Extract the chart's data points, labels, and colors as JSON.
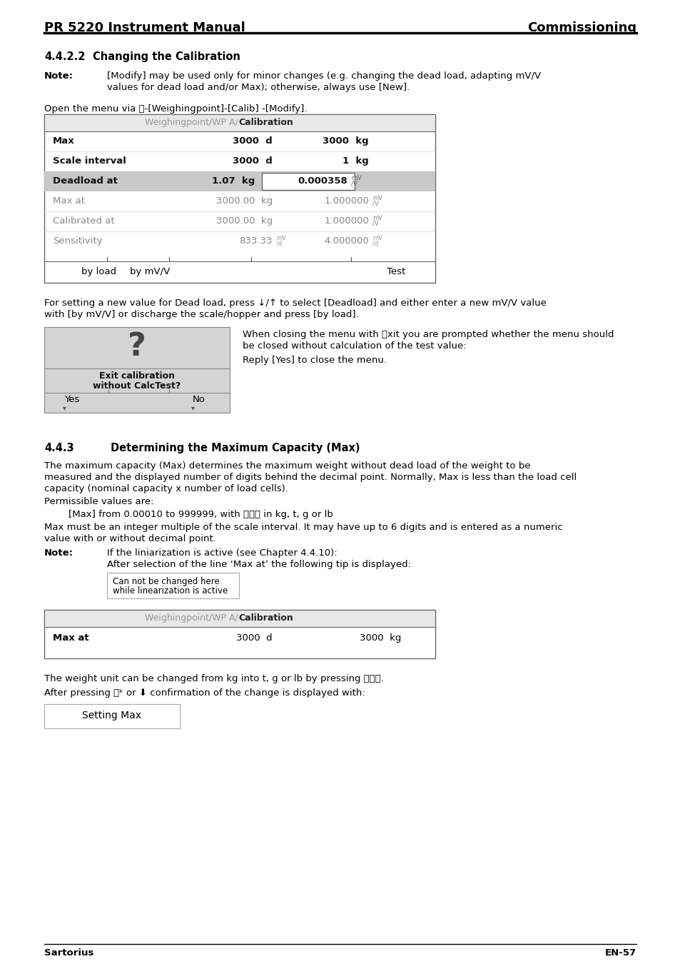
{
  "page_bg": "#ffffff",
  "header_left": "PR 5220 Instrument Manual",
  "header_right": "Commissioning",
  "footer_left": "Sartorius",
  "footer_right": "EN-57",
  "section_442": "4.4.2.2",
  "section_442_title": "Changing the Calibration",
  "note_label": "Note:",
  "note_line1": "[Modify] may be used only for minor changes (e.g. changing the dead load, adapting mV/V",
  "note_line2": "values for dead load and/or Max); otherwise, always use [New].",
  "open_menu": "Open the menu via ⓨ-[Weighingpoint]-[Calib] -[Modify].",
  "t1_header_gray": "Weighingpoint/WP A/",
  "t1_header_bold": "Calibration",
  "t1_rows": [
    {
      "label": "Max",
      "bold": true,
      "gray": false,
      "highlight": false,
      "c2": "3000  d",
      "c3": "3000  kg",
      "icon2": "",
      "icon3": ""
    },
    {
      "label": "Scale interval",
      "bold": true,
      "gray": false,
      "highlight": false,
      "c2": "3000  d",
      "c3": "1  kg",
      "icon2": "",
      "icon3": ""
    },
    {
      "label": "Deadload at",
      "bold": true,
      "gray": false,
      "highlight": true,
      "c2": "1.07  kg",
      "c3": "0.000358",
      "icon2": "",
      "icon3": "mV/V"
    },
    {
      "label": "Max at",
      "bold": false,
      "gray": true,
      "highlight": false,
      "c2": "3000.00  kg",
      "c3": "1.000000",
      "icon2": "",
      "icon3": "mV/V"
    },
    {
      "label": "Calibrated at",
      "bold": false,
      "gray": true,
      "highlight": false,
      "c2": "3000.00  kg",
      "c3": "1.000000",
      "icon2": "",
      "icon3": "mV/V"
    },
    {
      "label": "Sensitivity",
      "bold": false,
      "gray": true,
      "highlight": false,
      "c2": "833.33",
      "c3": "4.000000",
      "icon2": "mV/d",
      "icon3": "mV/d"
    }
  ],
  "t1_footer": [
    "by load",
    "by mV/V",
    "Test"
  ],
  "dead_text1": "For setting a new value for Dead load, press ↓/↑ to select [Deadload] and either enter a new mV/V value",
  "dead_text2": "with [by mV/V] or discharge the scale/hopper and press [by load].",
  "dlg_question": "?",
  "dlg_line1": "Exit calibration",
  "dlg_line2": "without CalcTest?",
  "dlg_yes": "Yes",
  "dlg_no": "No",
  "when1": "When closing the menu with ⓔxit you are prompted whether the menu should",
  "when2": "be closed without calculation of the test value:",
  "reply": "Reply [Yes] to close the menu.",
  "section_443": "4.4.3",
  "section_443_title": "Determining the Maximum Capacity (Max)",
  "p1": "The maximum capacity (Max) determines the maximum weight without dead load of the weight to be",
  "p2": "measured and the displayed number of digits behind the decimal point. Normally, Max is less than the load cell",
  "p3": "capacity (nominal capacity x number of load cells).",
  "perm": "Permissible values are:",
  "perm_val": "        [Max] from 0.00010 to 999999, with ⒶⒷⒸ in kg, t, g or lb",
  "mm1": "Max must be an integer multiple of the scale interval. It may have up to 6 digits and is entered as a numeric",
  "mm2": "value with or without decimal point.",
  "note2_label": "Note:",
  "note2_1": "If the liniarization is active (see Chapter 4.4.10):",
  "note2_2": "After selection of the line ‘Max at’ the following tip is displayed:",
  "tip1": "Can not be changed here",
  "tip2": "while linearization is active",
  "t2_header_gray": "Weighingpoint/WP A/",
  "t2_header_bold": "Calibration",
  "t2_row_label": "Max at",
  "t2_row_c2": "3000  d",
  "t2_row_c3": "3000  kg",
  "wu_text": "The weight unit can be changed from kg into t, g or lb by pressing ⒶⒷⒸ.",
  "ap_text": "After pressing ⓞᵏ or ⬇ confirmation of the change is displayed with:",
  "sm_text": "Setting Max"
}
